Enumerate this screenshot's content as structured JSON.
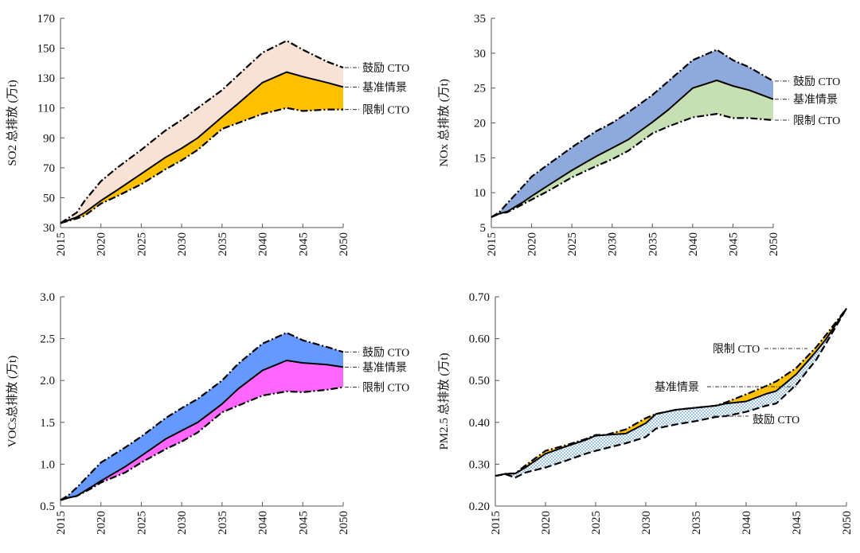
{
  "chart_data": [
    {
      "type": "area",
      "id": "so2",
      "title": "",
      "xlabel": "",
      "ylabel": "SO2 总排放 (万t)",
      "xlim": [
        2015,
        2050
      ],
      "ylim": [
        30,
        170
      ],
      "x_ticks": [
        2015,
        2020,
        2025,
        2030,
        2035,
        2040,
        2045,
        2050
      ],
      "y_ticks": [
        30,
        50,
        70,
        90,
        110,
        130,
        150,
        170
      ],
      "y_tick_labels": [
        "30",
        "50",
        "70",
        "90",
        "110",
        "130",
        "150",
        "170"
      ],
      "fills": [
        {
          "between": [
            "鼓励 CTO",
            "基准情景"
          ],
          "color": "#F8E2D6"
        },
        {
          "between": [
            "基准情景",
            "限制 CTO"
          ],
          "color": "#FFC000"
        }
      ],
      "x": [
        2015,
        2017,
        2018,
        2020,
        2022,
        2025,
        2028,
        2030,
        2032,
        2035,
        2037,
        2040,
        2043,
        2045,
        2048,
        2050
      ],
      "series": [
        {
          "name": "鼓励 CTO",
          "style": "dash-dot",
          "values": [
            33,
            40,
            48,
            61,
            70,
            82,
            95,
            102,
            110,
            122,
            132,
            147,
            155,
            149,
            141,
            137
          ]
        },
        {
          "name": "基准情景",
          "style": "solid",
          "values": [
            33,
            37,
            40,
            48,
            55,
            66,
            77,
            83,
            90,
            104,
            113,
            127,
            134,
            131,
            127,
            124
          ]
        },
        {
          "name": "限制 CTO",
          "style": "dash-dot",
          "values": [
            33,
            36,
            38,
            46,
            51,
            59,
            69,
            75,
            82,
            96,
            100,
            106,
            110,
            108,
            109,
            109
          ]
        }
      ],
      "annotations": [
        "鼓励 CTO",
        "基准情景",
        "限制 CTO"
      ]
    },
    {
      "type": "area",
      "id": "nox",
      "title": "",
      "xlabel": "",
      "ylabel": "NOx 总排放 (万t)",
      "xlim": [
        2015,
        2050
      ],
      "ylim": [
        5,
        35
      ],
      "x_ticks": [
        2015,
        2020,
        2025,
        2030,
        2035,
        2040,
        2045,
        2050
      ],
      "y_ticks": [
        5,
        10,
        15,
        20,
        25,
        30,
        35
      ],
      "y_tick_labels": [
        "5",
        "10",
        "15",
        "20",
        "25",
        "30",
        "35"
      ],
      "fills": [
        {
          "between": [
            "鼓励 CTO",
            "基准情景"
          ],
          "color": "#8EA9DB"
        },
        {
          "between": [
            "基准情景",
            "限制 CTO"
          ],
          "color": "#C6E0B4"
        }
      ],
      "x": [
        2015,
        2016,
        2017,
        2019,
        2020,
        2022,
        2025,
        2028,
        2030,
        2032,
        2035,
        2037,
        2040,
        2043,
        2045,
        2047,
        2050
      ],
      "series": [
        {
          "name": "鼓励 CTO",
          "style": "dash-dot",
          "values": [
            6.5,
            7.2,
            8.5,
            11.0,
            12.3,
            14.0,
            16.5,
            18.8,
            20.0,
            21.5,
            24.0,
            26.0,
            29.0,
            30.5,
            29.0,
            28.0,
            26.0
          ]
        },
        {
          "name": "基准情景",
          "style": "solid",
          "values": [
            6.5,
            7.0,
            7.3,
            8.7,
            9.5,
            11.0,
            13.2,
            15.2,
            16.4,
            17.6,
            20.1,
            21.9,
            25.0,
            26.1,
            25.3,
            24.7,
            23.4
          ]
        },
        {
          "name": "限制 CTO",
          "style": "dash-dot",
          "values": [
            6.5,
            7.0,
            7.2,
            8.4,
            9.0,
            10.2,
            12.2,
            13.8,
            14.8,
            16.0,
            18.5,
            19.5,
            20.8,
            21.3,
            20.7,
            20.7,
            20.4
          ]
        }
      ],
      "annotations": [
        "鼓励 CTO",
        "基准情景",
        "限制 CTO"
      ]
    },
    {
      "type": "area",
      "id": "vocs",
      "title": "",
      "xlabel": "",
      "ylabel": "VOCs总排放 (万t)",
      "xlim": [
        2015,
        2050
      ],
      "ylim": [
        0.5,
        3.0
      ],
      "x_ticks": [
        2015,
        2020,
        2025,
        2030,
        2035,
        2040,
        2045,
        2050
      ],
      "y_ticks": [
        0.5,
        1.0,
        1.5,
        2.0,
        2.5,
        3.0
      ],
      "y_tick_labels": [
        "0.5",
        "1.0",
        "1.5",
        "2.0",
        "2.5",
        "3.0"
      ],
      "fills": [
        {
          "between": [
            "鼓励 CTO",
            "基准情景"
          ],
          "color": "#6699FF"
        },
        {
          "between": [
            "基准情景",
            "限制 CTO"
          ],
          "color": "#FF66FF"
        }
      ],
      "x": [
        2015,
        2016,
        2017,
        2019,
        2020,
        2023,
        2025,
        2028,
        2030,
        2032,
        2035,
        2037,
        2040,
        2043,
        2045,
        2048,
        2050
      ],
      "series": [
        {
          "name": "鼓励 CTO",
          "style": "dash-dot",
          "values": [
            0.57,
            0.63,
            0.72,
            0.92,
            1.02,
            1.2,
            1.33,
            1.55,
            1.67,
            1.78,
            2.0,
            2.2,
            2.44,
            2.57,
            2.48,
            2.4,
            2.34
          ]
        },
        {
          "name": "基准情景",
          "style": "solid",
          "values": [
            0.57,
            0.6,
            0.62,
            0.74,
            0.8,
            0.97,
            1.1,
            1.3,
            1.4,
            1.5,
            1.72,
            1.9,
            2.12,
            2.24,
            2.21,
            2.19,
            2.16
          ]
        },
        {
          "name": "限制 CTO",
          "style": "dash-dot",
          "values": [
            0.57,
            0.6,
            0.62,
            0.72,
            0.78,
            0.9,
            1.02,
            1.18,
            1.27,
            1.38,
            1.62,
            1.7,
            1.82,
            1.87,
            1.86,
            1.89,
            1.92
          ]
        }
      ],
      "annotations": [
        "鼓励 CTO",
        "基准情景",
        "限制 CTO"
      ]
    },
    {
      "type": "area",
      "id": "pm25",
      "title": "",
      "xlabel": "",
      "ylabel": "PM2.5 总排放 (万t)",
      "xlim": [
        2015,
        2050
      ],
      "ylim": [
        0.2,
        0.7
      ],
      "x_ticks": [
        2015,
        2020,
        2025,
        2030,
        2035,
        2040,
        2045,
        2050
      ],
      "y_ticks": [
        0.2,
        0.3,
        0.4,
        0.5,
        0.6,
        0.7
      ],
      "y_tick_labels": [
        "0.20",
        "0.30",
        "0.40",
        "0.50",
        "0.60",
        "0.70"
      ],
      "fills": [
        {
          "between": [
            "限制 CTO",
            "基准情景"
          ],
          "color": "#FFC000"
        },
        {
          "between": [
            "基准情景",
            "鼓励 CTO"
          ],
          "color": "#BDD7EE",
          "pattern": "checker"
        }
      ],
      "x": [
        2015,
        2016,
        2017,
        2018,
        2020,
        2022,
        2024,
        2025,
        2026,
        2028,
        2030,
        2031,
        2033,
        2035,
        2037,
        2038,
        2040,
        2042,
        2043,
        2045,
        2047,
        2048,
        2050
      ],
      "series": [
        {
          "name": "限制 CTO",
          "style": "dash-dot",
          "values": [
            0.272,
            0.277,
            0.278,
            0.297,
            0.332,
            0.345,
            0.36,
            0.37,
            0.37,
            0.383,
            0.41,
            0.42,
            0.43,
            0.435,
            0.44,
            0.448,
            0.467,
            0.487,
            0.498,
            0.53,
            0.58,
            0.61,
            0.672
          ]
        },
        {
          "name": "基准情景",
          "style": "solid",
          "values": [
            0.272,
            0.277,
            0.278,
            0.292,
            0.325,
            0.342,
            0.358,
            0.368,
            0.37,
            0.373,
            0.398,
            0.42,
            0.43,
            0.435,
            0.44,
            0.445,
            0.45,
            0.468,
            0.475,
            0.515,
            0.57,
            0.6,
            0.672
          ]
        },
        {
          "name": "鼓励 CTO",
          "style": "dash",
          "values": [
            0.272,
            0.276,
            0.268,
            0.28,
            0.292,
            0.308,
            0.325,
            0.332,
            0.338,
            0.35,
            0.365,
            0.385,
            0.395,
            0.403,
            0.413,
            0.415,
            0.425,
            0.44,
            0.445,
            0.49,
            0.55,
            0.59,
            0.672
          ]
        }
      ],
      "annotations": [
        "限制 CTO",
        "基准情景",
        "鼓励 CTO"
      ]
    }
  ]
}
